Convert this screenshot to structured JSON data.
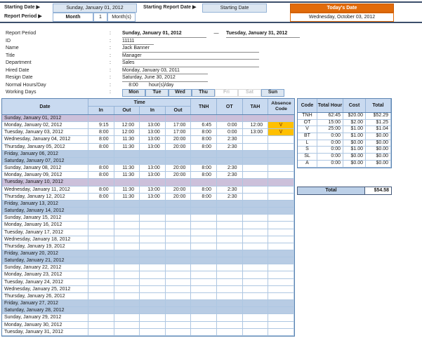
{
  "colors": {
    "accent_blue": "#dce6f1",
    "header_blue": "#c9daf0",
    "weekend_row": "#b8cce4",
    "holiday_row": "#ccc0da",
    "grid_border": "#95b3d7",
    "dark_rule": "#3c4f6b",
    "orange": "#e26b0a",
    "absence_bg": "#ffc000",
    "absence_text": "#9c5700"
  },
  "top_bar": {
    "starting_date_label": "Starting Date ▶",
    "starting_date_value": "Sunday, January 01, 2012",
    "starting_report_date_label": "Starting Report Date ▶",
    "starting_report_date_value": "Starting Date",
    "report_period_label": "Report Period ▶",
    "period_type": "Month",
    "period_count": "1",
    "period_unit": "Month(s)",
    "todays_date_label": "Today's Date",
    "todays_date_value": "Wednesday, October 03, 2012"
  },
  "info": {
    "colon": ":",
    "report_period": {
      "label": "Report Period",
      "from": "Sunday, January 01, 2012",
      "dash": "—",
      "to": "Tuesday, January 31, 2012"
    },
    "id": {
      "label": "ID",
      "value": "11111"
    },
    "name": {
      "label": "Name",
      "value": "Jack Banner"
    },
    "title": {
      "label": "Title",
      "value": "Manager"
    },
    "department": {
      "label": "Department",
      "value": "Sales"
    },
    "hired_date": {
      "label": "Hired Date",
      "value": "Monday, January 03, 2011"
    },
    "resign_date": {
      "label": "Resign Date",
      "value": "Saturday, June 30, 2012"
    },
    "normal_hours": {
      "label": "Normal Hours/Day",
      "value": "8:00",
      "unit": "hour(s)/day"
    },
    "working_days": {
      "label": "Working Days",
      "days": [
        {
          "label": "Mon",
          "active": true
        },
        {
          "label": "Tue",
          "active": true
        },
        {
          "label": "Wed",
          "active": true
        },
        {
          "label": "Thu",
          "active": true
        },
        {
          "label": "Fri",
          "active": false
        },
        {
          "label": "Sat",
          "active": false
        },
        {
          "label": "Sun",
          "active": true
        }
      ]
    }
  },
  "timesheet": {
    "headers": {
      "date": "Date",
      "time": "Time",
      "in1": "In",
      "out1": "Out",
      "in2": "In",
      "out2": "Out",
      "tnh": "TNH",
      "ot": "OT",
      "tah": "TAH",
      "absence": "Absence Code"
    },
    "rows": [
      {
        "date": "Sunday, January 01, 2012",
        "type": "holiday",
        "cells": [
          "",
          "",
          "",
          "",
          "",
          "",
          "",
          ""
        ]
      },
      {
        "date": "Monday, January 02, 2012",
        "type": "normal",
        "cells": [
          "9:15",
          "12:00",
          "13:00",
          "17:00",
          "6:45",
          "0:00",
          "12:00",
          "V"
        ]
      },
      {
        "date": "Tuesday, January 03, 2012",
        "type": "normal",
        "cells": [
          "8:00",
          "12:00",
          "13:00",
          "17:00",
          "8:00",
          "0:00",
          "13:00",
          "V"
        ]
      },
      {
        "date": "Wednesday, January 04, 2012",
        "type": "normal",
        "cells": [
          "8:00",
          "11:30",
          "13:00",
          "20:00",
          "8:00",
          "2:30",
          "",
          ""
        ]
      },
      {
        "date": "Thursday, January 05, 2012",
        "type": "normal",
        "cells": [
          "8:00",
          "11:30",
          "13:00",
          "20:00",
          "8:00",
          "2:30",
          "",
          ""
        ]
      },
      {
        "date": "Friday, January 06, 2012",
        "type": "weekend",
        "cells": [
          "",
          "",
          "",
          "",
          "",
          "",
          "",
          ""
        ]
      },
      {
        "date": "Saturday, January 07, 2012",
        "type": "weekend",
        "cells": [
          "",
          "",
          "",
          "",
          "",
          "",
          "",
          ""
        ]
      },
      {
        "date": "Sunday, January 08, 2012",
        "type": "normal",
        "cells": [
          "8:00",
          "11:30",
          "13:00",
          "20:00",
          "8:00",
          "2:30",
          "",
          ""
        ]
      },
      {
        "date": "Monday, January 09, 2012",
        "type": "normal",
        "cells": [
          "8:00",
          "11:30",
          "13:00",
          "20:00",
          "8:00",
          "2:30",
          "",
          ""
        ]
      },
      {
        "date": "Tuesday, January 10, 2012",
        "type": "holiday",
        "cells": [
          "",
          "",
          "",
          "",
          "",
          "",
          "",
          ""
        ]
      },
      {
        "date": "Wednesday, January 11, 2012",
        "type": "normal",
        "cells": [
          "8:00",
          "11:30",
          "13:00",
          "20:00",
          "8:00",
          "2:30",
          "",
          ""
        ]
      },
      {
        "date": "Thursday, January 12, 2012",
        "type": "normal",
        "cells": [
          "8:00",
          "11:30",
          "13:00",
          "20:00",
          "8:00",
          "2:30",
          "",
          ""
        ]
      },
      {
        "date": "Friday, January 13, 2012",
        "type": "weekend",
        "cells": [
          "",
          "",
          "",
          "",
          "",
          "",
          "",
          ""
        ]
      },
      {
        "date": "Saturday, January 14, 2012",
        "type": "weekend",
        "cells": [
          "",
          "",
          "",
          "",
          "",
          "",
          "",
          ""
        ]
      },
      {
        "date": "Sunday, January 15, 2012",
        "type": "normal",
        "cells": [
          "",
          "",
          "",
          "",
          "",
          "",
          "",
          ""
        ]
      },
      {
        "date": "Monday, January 16, 2012",
        "type": "normal",
        "cells": [
          "",
          "",
          "",
          "",
          "",
          "",
          "",
          ""
        ]
      },
      {
        "date": "Tuesday, January 17, 2012",
        "type": "normal",
        "cells": [
          "",
          "",
          "",
          "",
          "",
          "",
          "",
          ""
        ]
      },
      {
        "date": "Wednesday, January 18, 2012",
        "type": "normal",
        "cells": [
          "",
          "",
          "",
          "",
          "",
          "",
          "",
          ""
        ]
      },
      {
        "date": "Thursday, January 19, 2012",
        "type": "normal",
        "cells": [
          "",
          "",
          "",
          "",
          "",
          "",
          "",
          ""
        ]
      },
      {
        "date": "Friday, January 20, 2012",
        "type": "weekend",
        "cells": [
          "",
          "",
          "",
          "",
          "",
          "",
          "",
          ""
        ]
      },
      {
        "date": "Saturday, January 21, 2012",
        "type": "weekend",
        "cells": [
          "",
          "",
          "",
          "",
          "",
          "",
          "",
          ""
        ]
      },
      {
        "date": "Sunday, January 22, 2012",
        "type": "normal",
        "cells": [
          "",
          "",
          "",
          "",
          "",
          "",
          "",
          ""
        ]
      },
      {
        "date": "Monday, January 23, 2012",
        "type": "normal",
        "cells": [
          "",
          "",
          "",
          "",
          "",
          "",
          "",
          ""
        ]
      },
      {
        "date": "Tuesday, January 24, 2012",
        "type": "normal",
        "cells": [
          "",
          "",
          "",
          "",
          "",
          "",
          "",
          ""
        ]
      },
      {
        "date": "Wednesday, January 25, 2012",
        "type": "normal",
        "cells": [
          "",
          "",
          "",
          "",
          "",
          "",
          "",
          ""
        ]
      },
      {
        "date": "Thursday, January 26, 2012",
        "type": "normal",
        "cells": [
          "",
          "",
          "",
          "",
          "",
          "",
          "",
          ""
        ]
      },
      {
        "date": "Friday, January 27, 2012",
        "type": "weekend",
        "cells": [
          "",
          "",
          "",
          "",
          "",
          "",
          "",
          ""
        ]
      },
      {
        "date": "Saturday, January 28, 2012",
        "type": "weekend",
        "cells": [
          "",
          "",
          "",
          "",
          "",
          "",
          "",
          ""
        ]
      },
      {
        "date": "Sunday, January 29, 2012",
        "type": "normal",
        "cells": [
          "",
          "",
          "",
          "",
          "",
          "",
          "",
          ""
        ]
      },
      {
        "date": "Monday, January 30, 2012",
        "type": "normal",
        "cells": [
          "",
          "",
          "",
          "",
          "",
          "",
          "",
          ""
        ]
      },
      {
        "date": "Tuesday, January 31, 2012",
        "type": "normal",
        "cells": [
          "",
          "",
          "",
          "",
          "",
          "",
          "",
          ""
        ]
      }
    ]
  },
  "summary": {
    "headers": [
      "Code",
      "Total Hour",
      "Cost",
      "Total"
    ],
    "rows": [
      [
        "TNH",
        "62:45",
        "$20.00",
        "$52.29"
      ],
      [
        "OT",
        "15:00",
        "$2.00",
        "$1.25"
      ],
      [
        "V",
        "25:00",
        "$1.00",
        "$1.04"
      ],
      [
        "BT",
        "0:00",
        "$1.00",
        "$0.00"
      ],
      [
        "L",
        "0:00",
        "$0.00",
        "$0.00"
      ],
      [
        "S",
        "0:00",
        "$1.00",
        "$0.00"
      ],
      [
        "SL",
        "0:00",
        "$0.00",
        "$0.00"
      ],
      [
        "A",
        "0:00",
        "$0.00",
        "$0.00"
      ]
    ],
    "total_label": "Total",
    "total_value": "$54.58"
  }
}
